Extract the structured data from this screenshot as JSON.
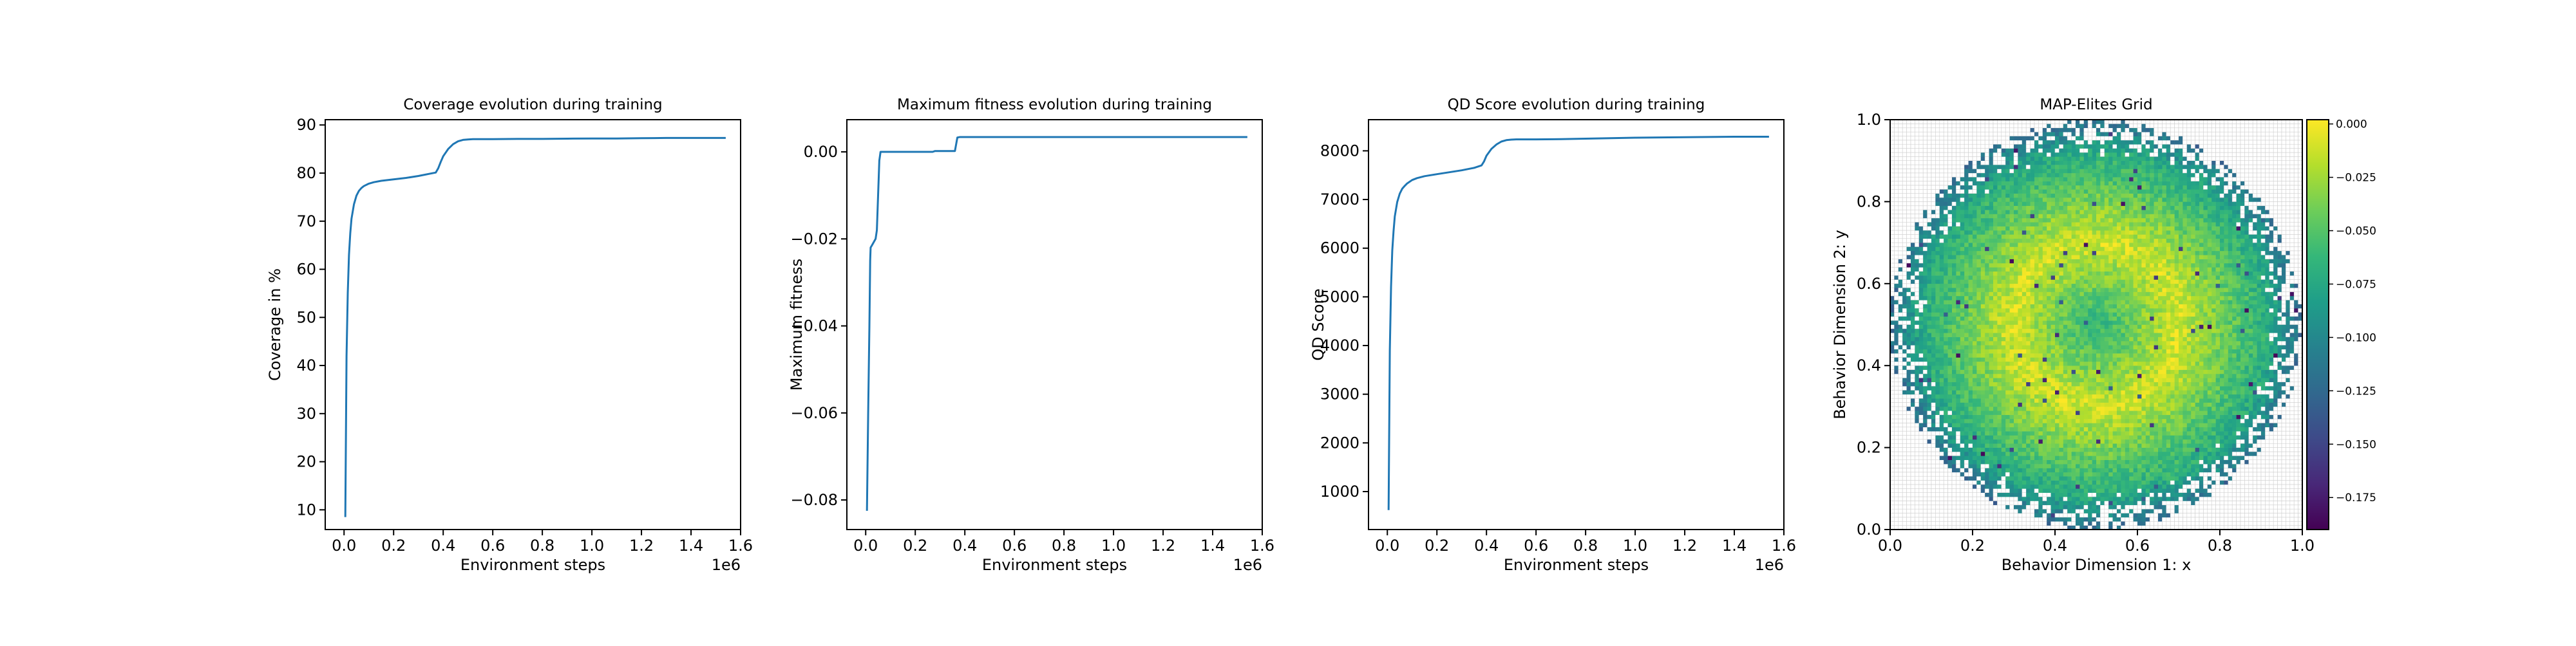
{
  "figure": {
    "background": "#ffffff",
    "line_color": "#1f77b4"
  },
  "chart_data": [
    {
      "type": "line",
      "title": "Coverage evolution during training",
      "xlabel": "Environment steps",
      "ylabel": "Coverage in %",
      "x_offset_label": "1e6",
      "xlim": [
        -0.076,
        1.6
      ],
      "ylim": [
        5.9,
        91.1
      ],
      "xticks": [
        0.0,
        0.2,
        0.4,
        0.6,
        0.8,
        1.0,
        1.2,
        1.4,
        1.6
      ],
      "xtick_labels": [
        "0.0",
        "0.2",
        "0.4",
        "0.6",
        "0.8",
        "1.0",
        "1.2",
        "1.4",
        "1.6"
      ],
      "yticks": [
        10,
        20,
        30,
        40,
        50,
        60,
        70,
        80,
        90
      ],
      "ytick_labels": [
        "10",
        "20",
        "30",
        "40",
        "50",
        "60",
        "70",
        "80",
        "90"
      ],
      "series": [
        {
          "x": [
            0.005,
            0.01,
            0.015,
            0.02,
            0.025,
            0.03,
            0.04,
            0.05,
            0.06,
            0.07,
            0.08,
            0.1,
            0.12,
            0.15,
            0.2,
            0.25,
            0.3,
            0.35,
            0.37,
            0.38,
            0.39,
            0.4,
            0.42,
            0.44,
            0.46,
            0.48,
            0.5,
            0.52,
            0.55,
            0.6,
            0.7,
            0.8,
            0.9,
            1.0,
            1.1,
            1.2,
            1.3,
            1.4,
            1.5,
            1.54
          ],
          "y": [
            8.5,
            42,
            55,
            63,
            67.5,
            70.5,
            73.5,
            75.3,
            76.3,
            76.9,
            77.3,
            77.8,
            78.1,
            78.4,
            78.7,
            79.0,
            79.4,
            79.9,
            80.1,
            81.0,
            82.3,
            83.5,
            85.0,
            86.0,
            86.6,
            86.9,
            87.0,
            87.05,
            87.05,
            87.05,
            87.1,
            87.1,
            87.15,
            87.2,
            87.2,
            87.25,
            87.3,
            87.3,
            87.3,
            87.3
          ]
        }
      ]
    },
    {
      "type": "line",
      "title": "Maximum fitness evolution during training",
      "xlabel": "Environment steps",
      "ylabel": "Maximum fitness",
      "x_offset_label": "1e6",
      "xlim": [
        -0.076,
        1.6
      ],
      "ylim": [
        -0.0868,
        0.0074
      ],
      "xticks": [
        0.0,
        0.2,
        0.4,
        0.6,
        0.8,
        1.0,
        1.2,
        1.4,
        1.6
      ],
      "xtick_labels": [
        "0.0",
        "0.2",
        "0.4",
        "0.6",
        "0.8",
        "1.0",
        "1.2",
        "1.4",
        "1.6"
      ],
      "yticks": [
        -0.08,
        -0.06,
        -0.04,
        -0.02,
        0.0
      ],
      "ytick_labels": [
        "−0.08",
        "−0.06",
        "−0.04",
        "−0.02",
        "0.00"
      ],
      "series": [
        {
          "x": [
            0.005,
            0.01,
            0.015,
            0.018,
            0.02,
            0.025,
            0.03,
            0.04,
            0.045,
            0.05,
            0.055,
            0.06,
            0.1,
            0.2,
            0.27,
            0.28,
            0.35,
            0.36,
            0.37,
            0.38,
            0.5,
            0.7,
            0.9,
            1.1,
            1.3,
            1.54
          ],
          "y": [
            -0.0825,
            -0.06,
            -0.04,
            -0.025,
            -0.022,
            -0.0215,
            -0.021,
            -0.02,
            -0.018,
            -0.01,
            -0.002,
            0.0,
            0.0,
            0.0,
            0.0,
            0.0002,
            0.0002,
            0.0002,
            0.0033,
            0.0034,
            0.0034,
            0.0034,
            0.0034,
            0.0034,
            0.0034,
            0.0034
          ]
        }
      ]
    },
    {
      "type": "line",
      "title": "QD Score evolution during training",
      "xlabel": "Environment steps",
      "ylabel": "QD Score",
      "x_offset_label": "1e6",
      "xlim": [
        -0.076,
        1.6
      ],
      "ylim": [
        220,
        8640
      ],
      "xticks": [
        0.0,
        0.2,
        0.4,
        0.6,
        0.8,
        1.0,
        1.2,
        1.4,
        1.6
      ],
      "xtick_labels": [
        "0.0",
        "0.2",
        "0.4",
        "0.6",
        "0.8",
        "1.0",
        "1.2",
        "1.4",
        "1.6"
      ],
      "yticks": [
        1000,
        2000,
        3000,
        4000,
        5000,
        6000,
        7000,
        8000
      ],
      "ytick_labels": [
        "1000",
        "2000",
        "3000",
        "4000",
        "5000",
        "6000",
        "7000",
        "8000"
      ],
      "series": [
        {
          "x": [
            0.005,
            0.01,
            0.015,
            0.02,
            0.025,
            0.03,
            0.04,
            0.05,
            0.06,
            0.07,
            0.08,
            0.1,
            0.12,
            0.15,
            0.2,
            0.25,
            0.3,
            0.35,
            0.38,
            0.39,
            0.4,
            0.42,
            0.44,
            0.46,
            0.48,
            0.5,
            0.52,
            0.55,
            0.6,
            0.7,
            0.8,
            0.9,
            1.0,
            1.1,
            1.2,
            1.3,
            1.4,
            1.5,
            1.54
          ],
          "y": [
            620,
            3900,
            5200,
            5950,
            6350,
            6650,
            6950,
            7120,
            7220,
            7280,
            7330,
            7400,
            7440,
            7480,
            7520,
            7560,
            7600,
            7650,
            7700,
            7780,
            7900,
            8040,
            8130,
            8190,
            8220,
            8230,
            8235,
            8235,
            8235,
            8240,
            8250,
            8260,
            8270,
            8275,
            8280,
            8285,
            8290,
            8290,
            8290
          ]
        }
      ]
    },
    {
      "type": "heatmap",
      "title": "MAP-Elites Grid",
      "xlabel": "Behavior Dimension 1: x",
      "ylabel": "Behavior Dimension 2: y",
      "xlim": [
        0.0,
        1.0
      ],
      "ylim": [
        0.0,
        1.0
      ],
      "grid_resolution": 100,
      "empty_cell_color": "#ffffff",
      "empty_cell_border": "#d0d0d0",
      "xticks": [
        0.0,
        0.2,
        0.4,
        0.6,
        0.8,
        1.0
      ],
      "xtick_labels": [
        "0.0",
        "0.2",
        "0.4",
        "0.6",
        "0.8",
        "1.0"
      ],
      "yticks": [
        0.0,
        0.2,
        0.4,
        0.6,
        0.8,
        1.0
      ],
      "ytick_labels": [
        "0.0",
        "0.2",
        "0.4",
        "0.6",
        "0.8",
        "1.0"
      ],
      "colorbar": {
        "colormap": "viridis",
        "vmin": -0.19,
        "vmax": 0.002,
        "ticks": [
          0.0,
          -0.025,
          -0.05,
          -0.075,
          -0.1,
          -0.125,
          -0.15,
          -0.175
        ],
        "tick_labels": [
          "0.000",
          "−0.025",
          "−0.050",
          "−0.075",
          "−0.100",
          "−0.125",
          "−0.150",
          "−0.175"
        ]
      },
      "pattern": {
        "filled_region": "disk",
        "center": [
          0.5,
          0.5
        ],
        "radius": 0.5,
        "ring_radius": 0.2,
        "typical_fitness_range": [
          -0.1,
          -0.01
        ]
      }
    }
  ]
}
